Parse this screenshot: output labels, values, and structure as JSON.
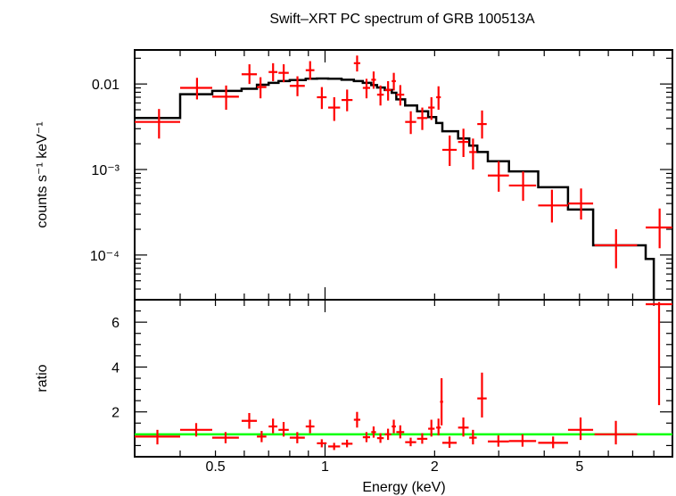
{
  "chart_data": [
    {
      "type": "scatter",
      "panel": "spectrum",
      "title": "Swift–XRT PC spectrum of GRB 100513A",
      "xlabel": "",
      "ylabel": "counts s⁻¹ keV⁻¹",
      "xscale": "log",
      "yscale": "log",
      "xlim": [
        0.3,
        9.0
      ],
      "ylim": [
        3e-05,
        0.025
      ],
      "y_tick_labels": [
        "0.01",
        "10⁻³",
        "10⁻⁴"
      ],
      "y_tick_values": [
        0.01,
        0.001,
        0.0001
      ],
      "colors": {
        "data": "#ff0000",
        "model": "#000000"
      },
      "series": [
        {
          "kind": "data",
          "points": [
            {
              "x": 0.35,
              "xlo": 0.3,
              "xhi": 0.4,
              "y": 0.0036,
              "ylo": 0.0023,
              "yhi": 0.0051
            },
            {
              "x": 0.445,
              "xlo": 0.4,
              "xhi": 0.49,
              "y": 0.009,
              "ylo": 0.0066,
              "yhi": 0.0118
            },
            {
              "x": 0.535,
              "xlo": 0.49,
              "xhi": 0.58,
              "y": 0.0071,
              "ylo": 0.005,
              "yhi": 0.0096
            },
            {
              "x": 0.62,
              "xlo": 0.59,
              "xhi": 0.65,
              "y": 0.013,
              "ylo": 0.01,
              "yhi": 0.017
            },
            {
              "x": 0.665,
              "xlo": 0.65,
              "xhi": 0.69,
              "y": 0.0092,
              "ylo": 0.0068,
              "yhi": 0.012
            },
            {
              "x": 0.72,
              "xlo": 0.7,
              "xhi": 0.74,
              "y": 0.0138,
              "ylo": 0.0108,
              "yhi": 0.0175
            },
            {
              "x": 0.77,
              "xlo": 0.745,
              "xhi": 0.795,
              "y": 0.0135,
              "ylo": 0.0105,
              "yhi": 0.017
            },
            {
              "x": 0.84,
              "xlo": 0.8,
              "xhi": 0.88,
              "y": 0.0095,
              "ylo": 0.0072,
              "yhi": 0.0123
            },
            {
              "x": 0.91,
              "xlo": 0.885,
              "xhi": 0.935,
              "y": 0.0145,
              "ylo": 0.0112,
              "yhi": 0.0185
            },
            {
              "x": 0.98,
              "xlo": 0.95,
              "xhi": 1.01,
              "y": 0.007,
              "ylo": 0.0051,
              "yhi": 0.0092
            },
            {
              "x": 1.06,
              "xlo": 1.02,
              "xhi": 1.1,
              "y": 0.0053,
              "ylo": 0.0037,
              "yhi": 0.007
            },
            {
              "x": 1.15,
              "xlo": 1.11,
              "xhi": 1.19,
              "y": 0.0065,
              "ylo": 0.0048,
              "yhi": 0.0086
            },
            {
              "x": 1.225,
              "xlo": 1.2,
              "xhi": 1.25,
              "y": 0.0175,
              "ylo": 0.014,
              "yhi": 0.0215
            },
            {
              "x": 1.3,
              "xlo": 1.27,
              "xhi": 1.33,
              "y": 0.009,
              "ylo": 0.0068,
              "yhi": 0.0115
            },
            {
              "x": 1.36,
              "xlo": 1.34,
              "xhi": 1.38,
              "y": 0.0112,
              "ylo": 0.0088,
              "yhi": 0.014
            },
            {
              "x": 1.42,
              "xlo": 1.39,
              "xhi": 1.45,
              "y": 0.0075,
              "ylo": 0.0056,
              "yhi": 0.0096
            },
            {
              "x": 1.49,
              "xlo": 1.46,
              "xhi": 1.52,
              "y": 0.0085,
              "ylo": 0.0064,
              "yhi": 0.0108
            },
            {
              "x": 1.545,
              "xlo": 1.525,
              "xhi": 1.565,
              "y": 0.0108,
              "ylo": 0.0084,
              "yhi": 0.0135
            },
            {
              "x": 1.61,
              "xlo": 1.57,
              "xhi": 1.65,
              "y": 0.0075,
              "ylo": 0.0056,
              "yhi": 0.0097
            },
            {
              "x": 1.72,
              "xlo": 1.66,
              "xhi": 1.78,
              "y": 0.0036,
              "ylo": 0.0026,
              "yhi": 0.0048
            },
            {
              "x": 1.85,
              "xlo": 1.79,
              "xhi": 1.91,
              "y": 0.004,
              "ylo": 0.0029,
              "yhi": 0.0053
            },
            {
              "x": 1.96,
              "xlo": 1.92,
              "xhi": 2.0,
              "y": 0.0053,
              "ylo": 0.0038,
              "yhi": 0.007
            },
            {
              "x": 2.05,
              "xlo": 2.02,
              "xhi": 2.08,
              "y": 0.007,
              "ylo": 0.005,
              "yhi": 0.0094
            },
            {
              "x": 2.2,
              "xlo": 2.1,
              "xhi": 2.3,
              "y": 0.0017,
              "ylo": 0.0011,
              "yhi": 0.0025
            },
            {
              "x": 2.4,
              "xlo": 2.32,
              "xhi": 2.48,
              "y": 0.0021,
              "ylo": 0.0014,
              "yhi": 0.003
            },
            {
              "x": 2.55,
              "xlo": 2.49,
              "xhi": 2.61,
              "y": 0.0016,
              "ylo": 0.001,
              "yhi": 0.0023
            },
            {
              "x": 2.7,
              "xlo": 2.62,
              "xhi": 2.78,
              "y": 0.0034,
              "ylo": 0.0023,
              "yhi": 0.0049
            },
            {
              "x": 3.0,
              "xlo": 2.8,
              "xhi": 3.2,
              "y": 0.00085,
              "ylo": 0.00055,
              "yhi": 0.00125
            },
            {
              "x": 3.5,
              "xlo": 3.2,
              "xhi": 3.8,
              "y": 0.00065,
              "ylo": 0.00043,
              "yhi": 0.00095
            },
            {
              "x": 4.2,
              "xlo": 3.85,
              "xhi": 4.65,
              "y": 0.00038,
              "ylo": 0.00024,
              "yhi": 0.00058
            },
            {
              "x": 5.05,
              "xlo": 4.65,
              "xhi": 5.45,
              "y": 0.0004,
              "ylo": 0.00026,
              "yhi": 0.0006
            },
            {
              "x": 6.3,
              "xlo": 5.5,
              "xhi": 7.2,
              "y": 0.00013,
              "ylo": 7e-05,
              "yhi": 0.0002
            },
            {
              "x": 8.3,
              "xlo": 7.6,
              "xhi": 9.0,
              "y": 0.00021,
              "ylo": 0.00012,
              "yhi": 0.00035
            }
          ]
        },
        {
          "kind": "model",
          "step": [
            {
              "xlo": 0.3,
              "xhi": 0.4,
              "y": 0.004
            },
            {
              "xlo": 0.4,
              "xhi": 0.49,
              "y": 0.0076
            },
            {
              "xlo": 0.49,
              "xhi": 0.59,
              "y": 0.0083
            },
            {
              "xlo": 0.59,
              "xhi": 0.65,
              "y": 0.0088
            },
            {
              "xlo": 0.65,
              "xhi": 0.7,
              "y": 0.0098
            },
            {
              "xlo": 0.7,
              "xhi": 0.745,
              "y": 0.0103
            },
            {
              "xlo": 0.745,
              "xhi": 0.8,
              "y": 0.0108
            },
            {
              "xlo": 0.8,
              "xhi": 0.885,
              "y": 0.0111
            },
            {
              "xlo": 0.885,
              "xhi": 0.95,
              "y": 0.0115
            },
            {
              "xlo": 0.95,
              "xhi": 1.02,
              "y": 0.0116
            },
            {
              "xlo": 1.02,
              "xhi": 1.11,
              "y": 0.0115
            },
            {
              "xlo": 1.11,
              "xhi": 1.2,
              "y": 0.0112
            },
            {
              "xlo": 1.2,
              "xhi": 1.27,
              "y": 0.0108
            },
            {
              "xlo": 1.27,
              "xhi": 1.34,
              "y": 0.0103
            },
            {
              "xlo": 1.34,
              "xhi": 1.39,
              "y": 0.0097
            },
            {
              "xlo": 1.39,
              "xhi": 1.46,
              "y": 0.0091
            },
            {
              "xlo": 1.46,
              "xhi": 1.525,
              "y": 0.0085
            },
            {
              "xlo": 1.525,
              "xhi": 1.57,
              "y": 0.0079
            },
            {
              "xlo": 1.57,
              "xhi": 1.66,
              "y": 0.0066
            },
            {
              "xlo": 1.66,
              "xhi": 1.79,
              "y": 0.0056
            },
            {
              "xlo": 1.79,
              "xhi": 1.92,
              "y": 0.0048
            },
            {
              "xlo": 1.92,
              "xhi": 2.02,
              "y": 0.0041
            },
            {
              "xlo": 2.02,
              "xhi": 2.1,
              "y": 0.0035
            },
            {
              "xlo": 2.1,
              "xhi": 2.32,
              "y": 0.0028
            },
            {
              "xlo": 2.32,
              "xhi": 2.49,
              "y": 0.0023
            },
            {
              "xlo": 2.49,
              "xhi": 2.62,
              "y": 0.0019
            },
            {
              "xlo": 2.62,
              "xhi": 2.8,
              "y": 0.0016
            },
            {
              "xlo": 2.8,
              "xhi": 3.2,
              "y": 0.00125
            },
            {
              "xlo": 3.2,
              "xhi": 3.85,
              "y": 0.00095
            },
            {
              "xlo": 3.85,
              "xhi": 4.65,
              "y": 0.00062
            },
            {
              "xlo": 4.65,
              "xhi": 5.45,
              "y": 0.00034
            },
            {
              "xlo": 5.45,
              "xhi": 7.6,
              "y": 0.00013
            },
            {
              "xlo": 7.6,
              "xhi": 8.0,
              "y": 9e-05
            }
          ]
        }
      ]
    },
    {
      "type": "scatter",
      "panel": "ratio",
      "xlabel": "Energy (keV)",
      "ylabel": "ratio",
      "xscale": "log",
      "yscale": "linear",
      "xlim": [
        0.3,
        9.0
      ],
      "ylim": [
        0.0,
        7.0
      ],
      "x_tick_labels": [
        "0.5",
        "1",
        "2",
        "5"
      ],
      "x_tick_values": [
        0.5,
        1,
        2,
        5
      ],
      "y_tick_labels": [
        "2",
        "4",
        "6"
      ],
      "y_tick_values": [
        2,
        4,
        6
      ],
      "reference_line": 1.0,
      "colors": {
        "data": "#ff0000",
        "reference": "#00ff00"
      },
      "series": [
        {
          "kind": "ratio",
          "points": [
            {
              "xlo": 0.3,
              "xhi": 0.4,
              "y": 0.9,
              "ylo": 0.55,
              "yhi": 1.2
            },
            {
              "xlo": 0.4,
              "xhi": 0.49,
              "y": 1.2,
              "ylo": 0.9,
              "yhi": 1.5
            },
            {
              "xlo": 0.49,
              "xhi": 0.58,
              "y": 0.85,
              "ylo": 0.6,
              "yhi": 1.1
            },
            {
              "xlo": 0.59,
              "xhi": 0.65,
              "y": 1.6,
              "ylo": 1.25,
              "yhi": 1.95
            },
            {
              "xlo": 0.65,
              "xhi": 0.69,
              "y": 0.9,
              "ylo": 0.65,
              "yhi": 1.15
            },
            {
              "xlo": 0.7,
              "xhi": 0.74,
              "y": 1.35,
              "ylo": 1.05,
              "yhi": 1.7
            },
            {
              "xlo": 0.745,
              "xhi": 0.795,
              "y": 1.2,
              "ylo": 0.9,
              "yhi": 1.55
            },
            {
              "xlo": 0.8,
              "xhi": 0.88,
              "y": 0.85,
              "ylo": 0.6,
              "yhi": 1.1
            },
            {
              "xlo": 0.885,
              "xhi": 0.935,
              "y": 1.35,
              "ylo": 1.05,
              "yhi": 1.65
            },
            {
              "xlo": 0.95,
              "xhi": 1.01,
              "y": 0.6,
              "ylo": 0.42,
              "yhi": 0.78
            },
            {
              "xlo": 1.02,
              "xhi": 1.1,
              "y": 0.46,
              "ylo": 0.3,
              "yhi": 0.62
            },
            {
              "xlo": 1.11,
              "xhi": 1.19,
              "y": 0.58,
              "ylo": 0.42,
              "yhi": 0.76
            },
            {
              "xlo": 1.2,
              "xhi": 1.25,
              "y": 1.65,
              "ylo": 1.3,
              "yhi": 2.0
            },
            {
              "xlo": 1.27,
              "xhi": 1.33,
              "y": 0.87,
              "ylo": 0.65,
              "yhi": 1.1
            },
            {
              "xlo": 1.34,
              "xhi": 1.38,
              "y": 1.1,
              "ylo": 0.85,
              "yhi": 1.35
            },
            {
              "xlo": 1.39,
              "xhi": 1.45,
              "y": 0.83,
              "ylo": 0.62,
              "yhi": 1.05
            },
            {
              "xlo": 1.46,
              "xhi": 1.52,
              "y": 1.0,
              "ylo": 0.75,
              "yhi": 1.25
            },
            {
              "xlo": 1.525,
              "xhi": 1.565,
              "y": 1.35,
              "ylo": 1.05,
              "yhi": 1.65
            },
            {
              "xlo": 1.57,
              "xhi": 1.65,
              "y": 1.1,
              "ylo": 0.82,
              "yhi": 1.4
            },
            {
              "xlo": 1.66,
              "xhi": 1.78,
              "y": 0.65,
              "ylo": 0.47,
              "yhi": 0.85
            },
            {
              "xlo": 1.79,
              "xhi": 1.91,
              "y": 0.8,
              "ylo": 0.58,
              "yhi": 1.05
            },
            {
              "xlo": 1.92,
              "xhi": 2.0,
              "y": 1.25,
              "ylo": 0.9,
              "yhi": 1.65
            },
            {
              "xlo": 2.02,
              "xhi": 2.08,
              "y": 1.3,
              "ylo": 0.95,
              "yhi": 1.7
            },
            {
              "xlo": 2.07,
              "xhi": 2.11,
              "y": 2.45,
              "ylo": 1.4,
              "yhi": 3.5
            },
            {
              "xlo": 2.1,
              "xhi": 2.3,
              "y": 0.62,
              "ylo": 0.4,
              "yhi": 0.9
            },
            {
              "xlo": 2.32,
              "xhi": 2.48,
              "y": 1.3,
              "ylo": 0.9,
              "yhi": 1.75
            },
            {
              "xlo": 2.49,
              "xhi": 2.61,
              "y": 0.85,
              "ylo": 0.55,
              "yhi": 1.2
            },
            {
              "xlo": 2.62,
              "xhi": 2.78,
              "y": 2.6,
              "ylo": 1.75,
              "yhi": 3.75
            },
            {
              "xlo": 2.8,
              "xhi": 3.2,
              "y": 0.68,
              "ylo": 0.45,
              "yhi": 0.95
            },
            {
              "xlo": 3.2,
              "xhi": 3.8,
              "y": 0.7,
              "ylo": 0.45,
              "yhi": 1.0
            },
            {
              "xlo": 3.85,
              "xhi": 4.65,
              "y": 0.62,
              "ylo": 0.38,
              "yhi": 0.9
            },
            {
              "xlo": 4.65,
              "xhi": 5.45,
              "y": 1.2,
              "ylo": 0.75,
              "yhi": 1.75
            },
            {
              "xlo": 5.5,
              "xhi": 7.2,
              "y": 1.0,
              "ylo": 0.55,
              "yhi": 1.6
            },
            {
              "xlo": 7.6,
              "xhi": 9.0,
              "y": 6.8,
              "ylo": 2.3,
              "yhi": 6.9
            }
          ]
        }
      ]
    }
  ]
}
